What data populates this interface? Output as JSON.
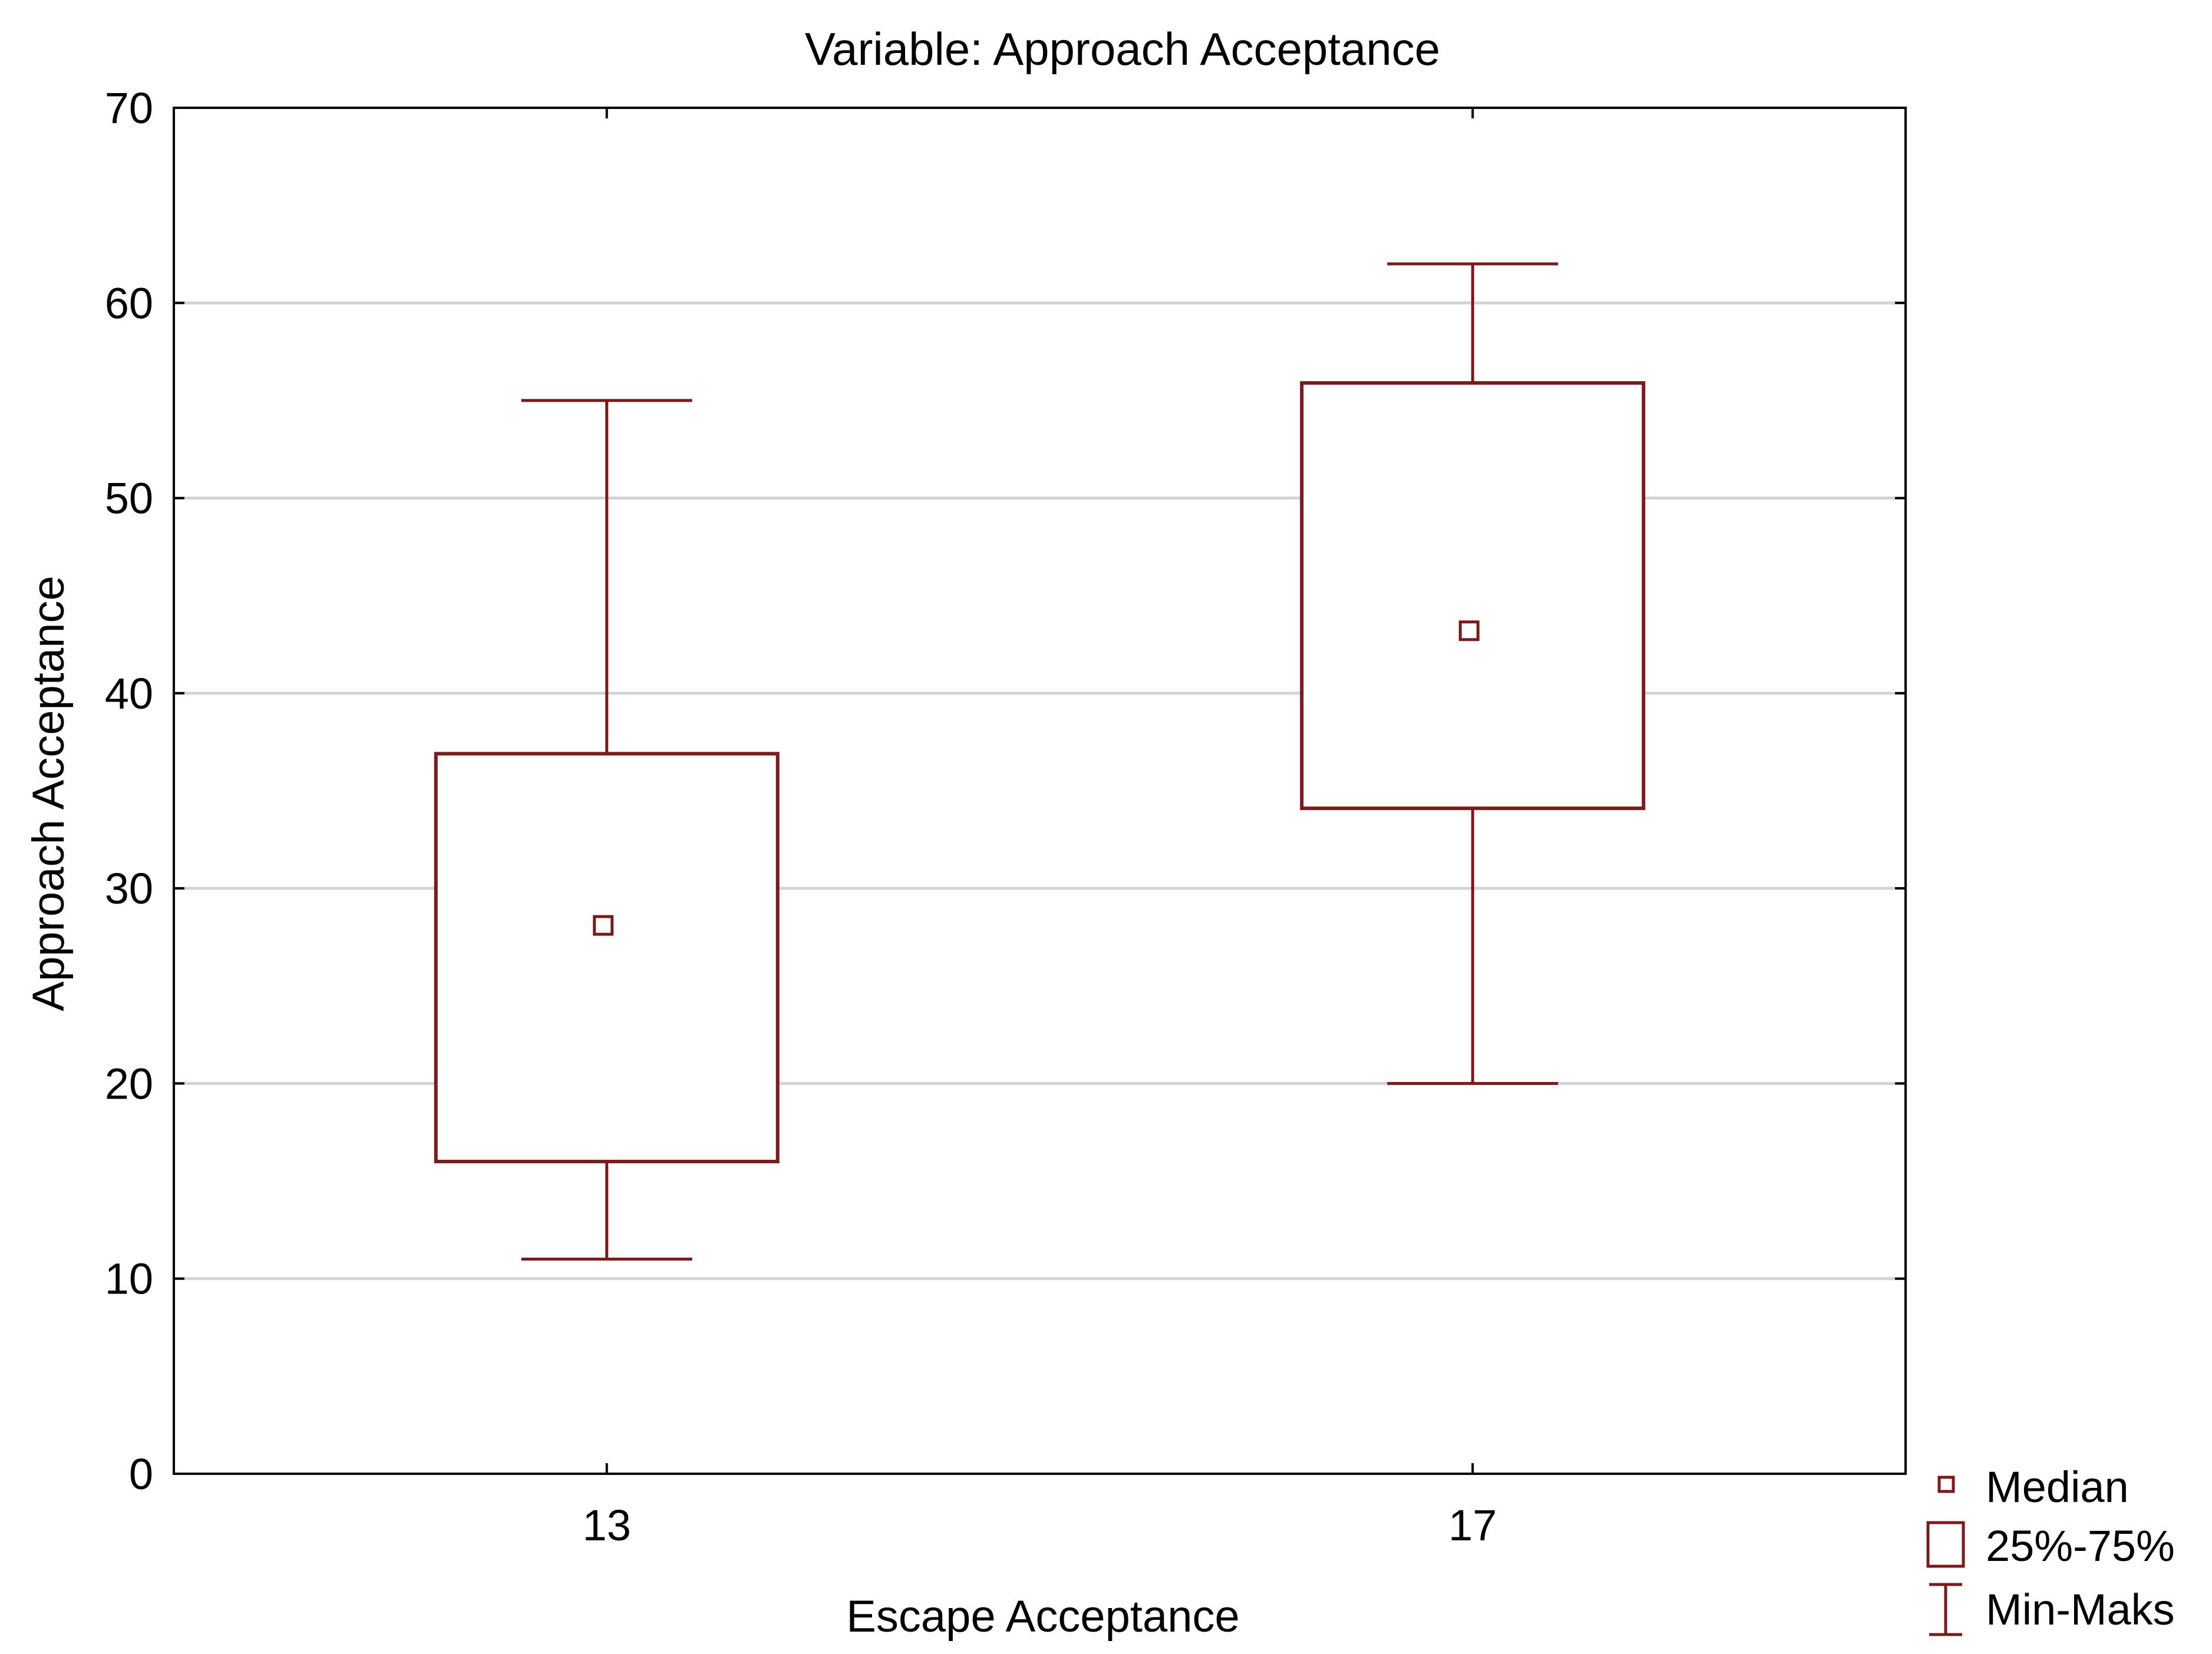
{
  "chart_data": {
    "type": "box",
    "title": "Variable:  Approach Acceptance",
    "xlabel": "Escape Acceptance",
    "ylabel": "Approach Acceptance",
    "ylim": [
      0,
      70
    ],
    "yticks": [
      0,
      10,
      20,
      30,
      40,
      50,
      60,
      70
    ],
    "grid": true,
    "categories": [
      "13",
      "17"
    ],
    "boxes": [
      {
        "category": "13",
        "min": 11,
        "q1": 16,
        "median": 28.1,
        "q3": 36.9,
        "max": 55
      },
      {
        "category": "17",
        "min": 20,
        "q1": 34.1,
        "median": 43.2,
        "q3": 55.9,
        "max": 62
      }
    ],
    "legend": {
      "position": "bottom-right",
      "entries": [
        {
          "marker": "small-square",
          "label": "Median"
        },
        {
          "marker": "box",
          "label": "25%-75%"
        },
        {
          "marker": "whisker",
          "label": "Min-Maks"
        }
      ]
    },
    "colors": {
      "series": "#7b1a1a",
      "grid": "#d3d3d3",
      "axis": "#000000"
    }
  }
}
